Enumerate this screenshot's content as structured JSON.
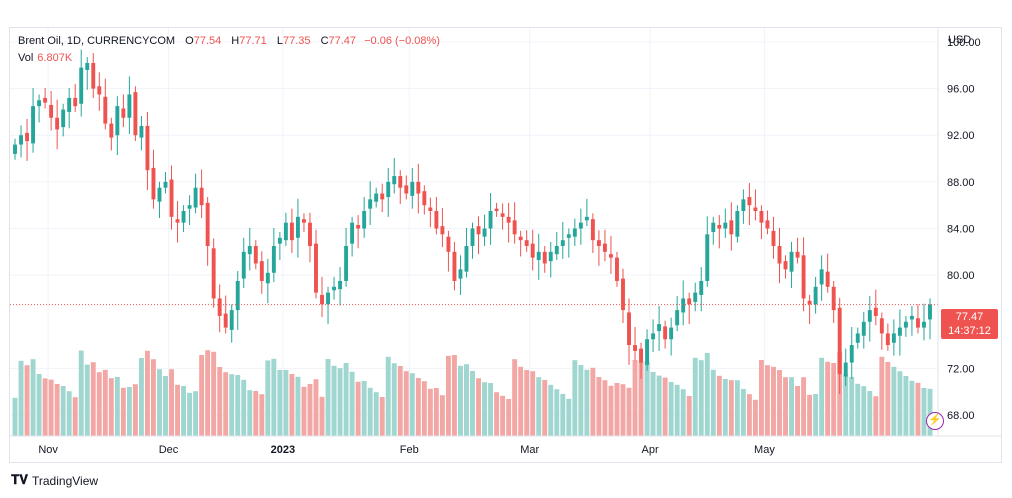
{
  "legend": {
    "symbol": "Brent Oil, 1D, CURRENCYCOM",
    "o_label": "O",
    "o": "77.54",
    "h_label": "H",
    "h": "77.71",
    "l_label": "L",
    "l": "77.35",
    "c_label": "C",
    "c": "77.47",
    "change": "−0.06 (−0.08%)",
    "vol_label": "Vol",
    "vol": "6.807K"
  },
  "currency": "USD",
  "last_price": "77.47",
  "countdown": "14:37:12",
  "branding": "TradingView",
  "colors": {
    "up": "#26a69a",
    "down": "#ef5350",
    "up_vol": "#9fd6cf",
    "down_vol": "#f3a7a5",
    "grid": "#f0f3fa"
  },
  "chart_data": {
    "type": "candlestick",
    "title": "Brent Oil, 1D, CURRENCYCOM",
    "ylabel": "USD",
    "ylim": [
      66.2,
      101.2
    ],
    "y_ticks": [
      "100.00",
      "96.00",
      "92.00",
      "88.00",
      "84.00",
      "80.00",
      "72.00",
      "68.00"
    ],
    "x_ticks": [
      "Nov",
      "Dec",
      "2023",
      "Feb",
      "Mar",
      "Apr",
      "May"
    ],
    "close": [
      91.2,
      92.0,
      91.5,
      94.5,
      95.0,
      94.8,
      93.5,
      92.5,
      94.2,
      95.2,
      94.5,
      97.8,
      98.2,
      96.0,
      95.5,
      93.0,
      91.8,
      94.5,
      93.5,
      95.5,
      92.0,
      92.8,
      89.0,
      86.5,
      87.5,
      88.0,
      85.0,
      84.5,
      85.5,
      86.0,
      87.5,
      86.0,
      82.5,
      78.0,
      76.5,
      75.5,
      77.0,
      79.5,
      82.0,
      82.5,
      81.0,
      79.5,
      80.2,
      82.5,
      83.2,
      84.5,
      83.0,
      85.0,
      84.5,
      82.5,
      78.5,
      77.5,
      78.5,
      79.0,
      79.5,
      82.5,
      84.5,
      84.0,
      85.5,
      86.5,
      87.0,
      86.5,
      88.0,
      88.5,
      87.5,
      87.0,
      88.0,
      87.0,
      86.0,
      85.5,
      84.0,
      83.5,
      82.0,
      79.5,
      80.5,
      82.5,
      84.0,
      83.5,
      84.0,
      85.5,
      85.5,
      85.0,
      84.5,
      83.5,
      83.0,
      82.5,
      81.5,
      82.0,
      81.0,
      82.0,
      82.5,
      83.0,
      83.5,
      84.0,
      84.5,
      85.0,
      83.0,
      82.5,
      82.0,
      81.5,
      79.5,
      77.0,
      74.0,
      73.5,
      72.5,
      74.5,
      75.0,
      75.8,
      74.5,
      75.5,
      77.0,
      78.0,
      77.5,
      78.5,
      79.5,
      83.5,
      84.5,
      84.0,
      84.5,
      83.5,
      85.5,
      86.5,
      86.0,
      85.5,
      84.5,
      84.0,
      82.5,
      81.0,
      80.5,
      82.0,
      81.5,
      78.0,
      77.5,
      79.0,
      80.5,
      79.0,
      77.0,
      71.5,
      72.5,
      74.0,
      75.0,
      76.0,
      77.0,
      76.5,
      75.0,
      74.0,
      75.0,
      75.5,
      76.0,
      76.5,
      75.5,
      76.0,
      77.5
    ]
  }
}
